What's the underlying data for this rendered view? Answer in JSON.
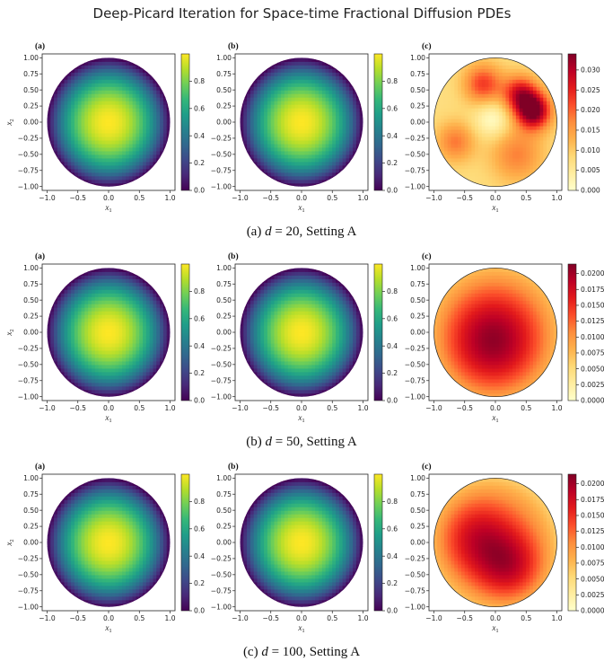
{
  "title": "Deep-Picard Iteration for Space-time Fractional Diffusion PDEs",
  "rows": [
    {
      "caption": "(a) d = 20, Setting A",
      "caption_parts": {
        "prefix": "(a) ",
        "var": "d",
        "rest": " = 20, Setting A"
      },
      "panels": [
        {
          "label": "(a)",
          "colormap": "viridis",
          "field": "radial",
          "colorbar": {
            "min": 0,
            "max": 1,
            "ticks": [
              "0.0",
              "0.2",
              "0.4",
              "0.6",
              "0.8"
            ]
          }
        },
        {
          "label": "(b)",
          "colormap": "viridis",
          "field": "radial",
          "colorbar": {
            "min": 0,
            "max": 1,
            "ticks": [
              "0.0",
              "0.2",
              "0.4",
              "0.6",
              "0.8"
            ]
          }
        },
        {
          "label": "(c)",
          "colormap": "YlOrRd",
          "field": "blobs",
          "colorbar": {
            "min": 0,
            "max": 0.034,
            "ticks": [
              "0.000",
              "0.005",
              "0.010",
              "0.015",
              "0.020",
              "0.025",
              "0.030"
            ]
          }
        }
      ]
    },
    {
      "caption": "(b) d = 50, Setting A",
      "caption_parts": {
        "prefix": "(b) ",
        "var": "d",
        "rest": " = 50, Setting A"
      },
      "panels": [
        {
          "label": "(a)",
          "colormap": "viridis",
          "field": "radial",
          "colorbar": {
            "min": 0,
            "max": 1,
            "ticks": [
              "0.0",
              "0.2",
              "0.4",
              "0.6",
              "0.8"
            ]
          }
        },
        {
          "label": "(b)",
          "colormap": "viridis",
          "field": "radial",
          "colorbar": {
            "min": 0,
            "max": 1,
            "ticks": [
              "0.0",
              "0.2",
              "0.4",
              "0.6",
              "0.8"
            ]
          }
        },
        {
          "label": "(c)",
          "colormap": "YlOrRd",
          "field": "dome",
          "colorbar": {
            "min": 0,
            "max": 0.0215,
            "ticks": [
              "0.0000",
              "0.0025",
              "0.0050",
              "0.0075",
              "0.0100",
              "0.0125",
              "0.0150",
              "0.0175",
              "0.0200"
            ]
          }
        }
      ]
    },
    {
      "caption": "(c) d = 100, Setting A",
      "caption_parts": {
        "prefix": "(c) ",
        "var": "d",
        "rest": " = 100, Setting A"
      },
      "panels": [
        {
          "label": "(a)",
          "colormap": "viridis",
          "field": "radial",
          "colorbar": {
            "min": 0,
            "max": 1,
            "ticks": [
              "0.0",
              "0.2",
              "0.4",
              "0.6",
              "0.8"
            ]
          }
        },
        {
          "label": "(b)",
          "colormap": "viridis",
          "field": "radial",
          "colorbar": {
            "min": 0,
            "max": 1,
            "ticks": [
              "0.0",
              "0.2",
              "0.4",
              "0.6",
              "0.8"
            ]
          }
        },
        {
          "label": "(c)",
          "colormap": "YlOrRd",
          "field": "dome2",
          "colorbar": {
            "min": 0,
            "max": 0.0215,
            "ticks": [
              "0.0000",
              "0.0025",
              "0.0050",
              "0.0075",
              "0.0100",
              "0.0125",
              "0.0150",
              "0.0175",
              "0.0200"
            ]
          }
        }
      ]
    }
  ],
  "axes": {
    "x_ticks": [
      "−1.0",
      "−0.5",
      "0.0",
      "0.5",
      "1.0"
    ],
    "y_ticks": [
      "1.00",
      "0.75",
      "0.50",
      "0.25",
      "0.00",
      "−0.25",
      "−0.50",
      "−0.75",
      "−1.00"
    ],
    "xlabel": {
      "var": "x",
      "sub": "1"
    },
    "ylabel": {
      "var": "x",
      "sub": "2"
    }
  }
}
